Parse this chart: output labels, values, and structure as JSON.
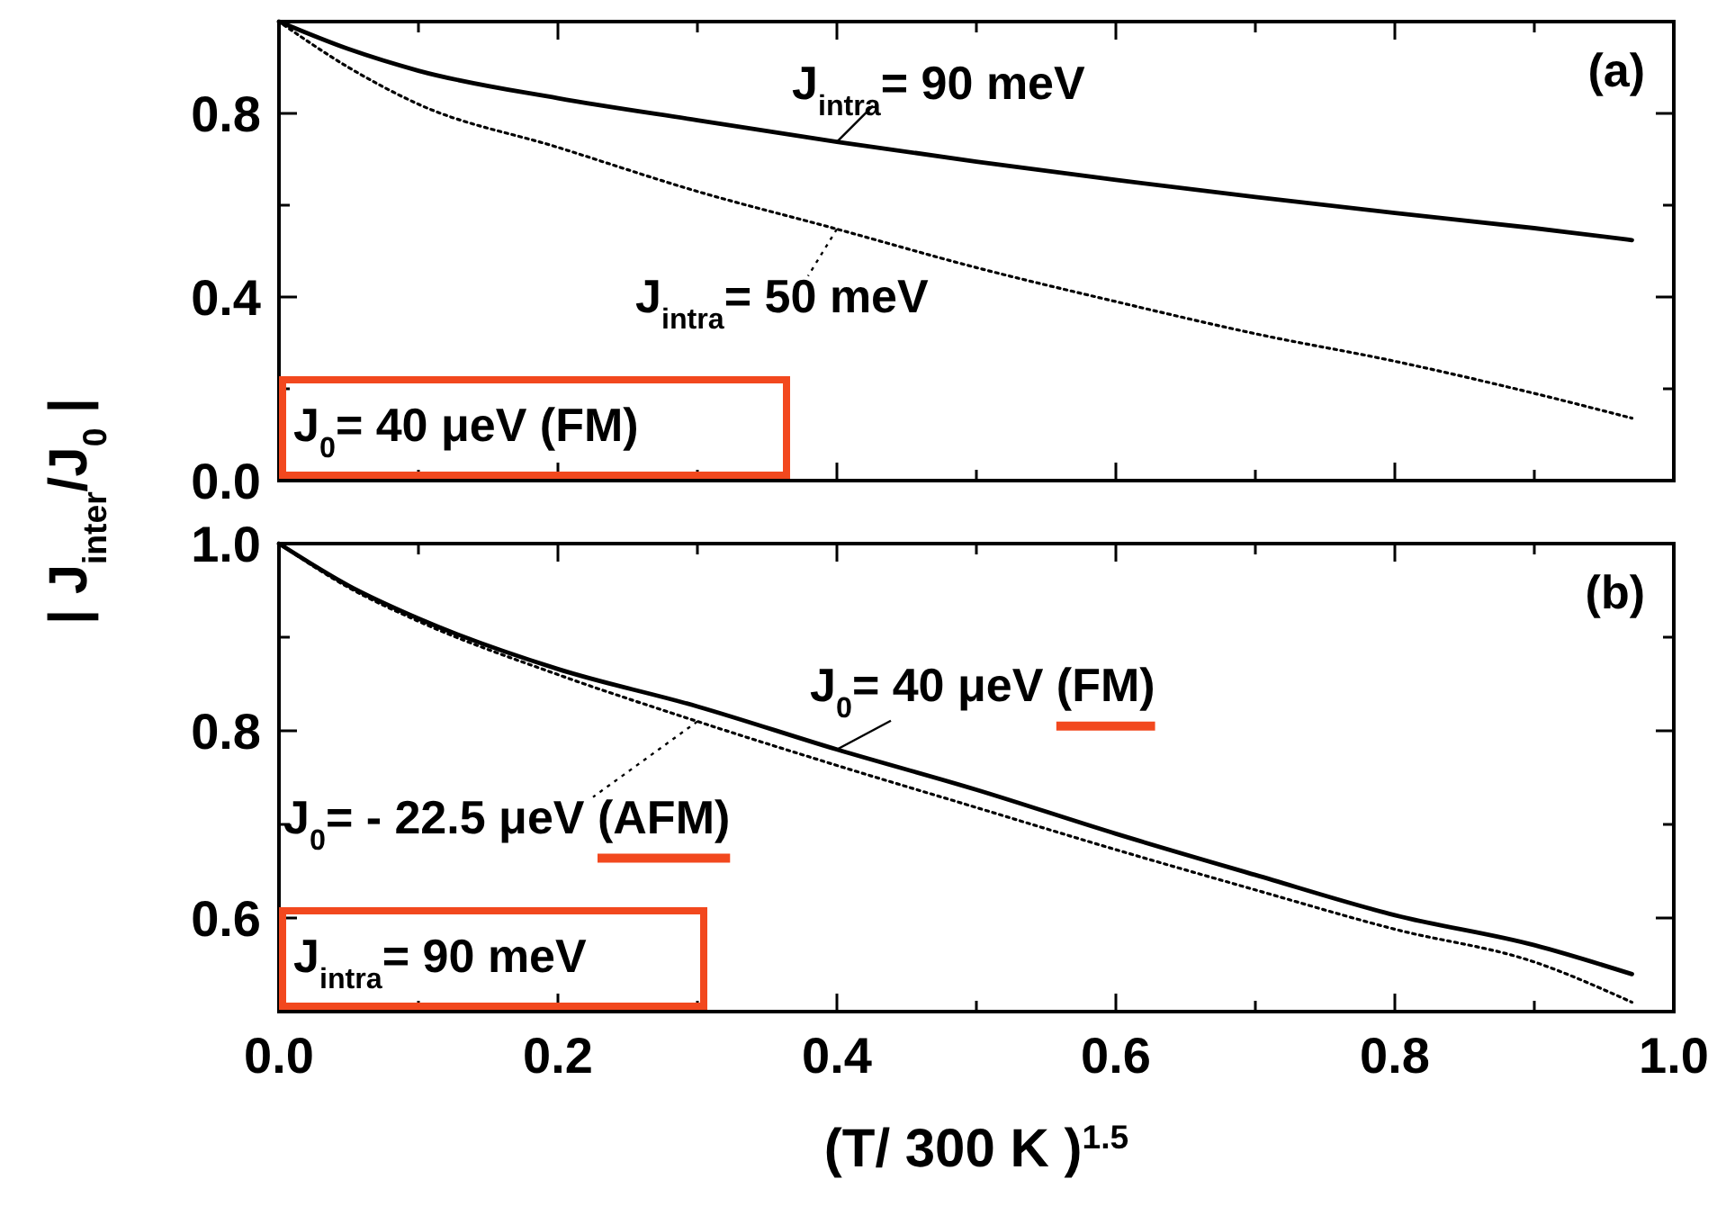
{
  "chart_data": [
    {
      "type": "line",
      "ylabel": "| J$_{inter}$/J$_{0}$ |",
      "xlim": [
        0,
        1
      ],
      "ylim": [
        0,
        1
      ],
      "xticks": [
        0,
        {
          "value": 0.1,
          "label": null
        },
        0.2,
        {
          "value": 0.3,
          "label": null
        },
        0.4,
        {
          "value": 0.5,
          "label": null
        },
        0.6,
        {
          "value": 0.7,
          "label": null
        },
        0.8,
        {
          "value": 0.9,
          "label": null
        },
        1.0
      ],
      "yticks": [
        {
          "value": 0,
          "label": "0.0"
        },
        {
          "value": 0.2,
          "label": null
        },
        0.4,
        {
          "value": 0.6,
          "label": null
        },
        0.8,
        {
          "value": 1.0,
          "label": null
        }
      ],
      "tick_labels": "y",
      "grid": false,
      "legend": "top",
      "marker": "none",
      "x": [
        0,
        0.05,
        0.1,
        0.2,
        0.3,
        0.4,
        0.5,
        0.6,
        0.7,
        0.8,
        0.9,
        0.97
      ],
      "series": [
        {
          "name": "J$_{intra}$= 90 meV",
          "color": "#000000",
          "line_style": "solid",
          "values": [
            1,
            0.94,
            0.893,
            0.833,
            0.785,
            0.738,
            0.695,
            0.655,
            0.618,
            0.583,
            0.55,
            0.524
          ]
        },
        {
          "name": "J$_{intra}$= 50 meV",
          "color": "#000000",
          "line_style": "dotted",
          "values": [
            1,
            0.9,
            0.82,
            0.726,
            0.63,
            0.548,
            0.464,
            0.39,
            0.32,
            0.26,
            0.19,
            0.136
          ]
        }
      ],
      "annotations": [
        "(a)",
        "J$_{0}$= 40 μeV (FM)"
      ]
    },
    {
      "type": "line",
      "xlabel": "(T/ 300 K )$^{1.5}$",
      "xlim": [
        0,
        1
      ],
      "ylim": [
        0.5,
        1
      ],
      "xticks": [
        {
          "value": 0,
          "label": "0.0"
        },
        {
          "value": 0.1,
          "label": null
        },
        0.2,
        {
          "value": 0.3,
          "label": null
        },
        0.4,
        {
          "value": 0.5,
          "label": null
        },
        0.6,
        {
          "value": 0.7,
          "label": null
        },
        0.8,
        {
          "value": 0.9,
          "label": null
        },
        {
          "value": 1,
          "label": "1.0"
        }
      ],
      "yticks": [
        {
          "value": 0.5,
          "label": null
        },
        0.6,
        {
          "value": 0.7,
          "label": null
        },
        0.8,
        {
          "value": 0.9,
          "label": null
        },
        {
          "value": 1,
          "label": "1.0"
        }
      ],
      "grid": false,
      "marker": "none",
      "x": [
        0,
        0.05,
        0.1,
        0.2,
        0.3,
        0.4,
        0.5,
        0.6,
        0.7,
        0.8,
        0.9,
        0.97
      ],
      "series": [
        {
          "name": "J$_{0}$= 40 μeV (FM)",
          "color": "#000000",
          "line_style": "solid",
          "values": [
            1,
            0.955,
            0.92,
            0.866,
            0.826,
            0.78,
            0.737,
            0.69,
            0.646,
            0.603,
            0.571,
            0.54
          ]
        },
        {
          "name": "J$_{0}$= - 22.5 μeV (AFM)",
          "color": "#000000",
          "line_style": "dotted",
          "values": [
            1,
            0.953,
            0.917,
            0.86,
            0.81,
            0.763,
            0.718,
            0.673,
            0.63,
            0.588,
            0.553,
            0.51
          ]
        }
      ],
      "annotations": [
        "(b)",
        "J$_{intra}$= 90 meV"
      ]
    }
  ]
}
